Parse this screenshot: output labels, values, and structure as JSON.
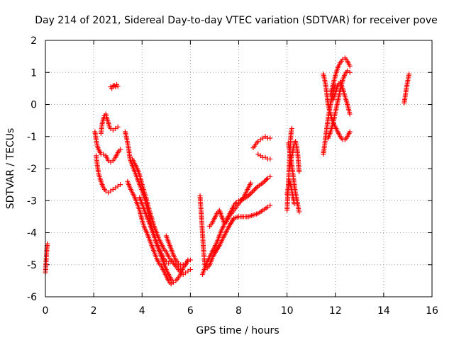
{
  "chart_data": {
    "type": "scatter",
    "title": "Day 214 of 2021, Sidereal Day-to-day VTEC variation (SDTVAR) for receiver pove",
    "xlabel": "GPS time / hours",
    "ylabel": "SDTVAR / TECUs",
    "xlim": [
      0,
      16
    ],
    "ylim": [
      -6,
      2
    ],
    "xticks": [
      0,
      2,
      4,
      6,
      8,
      10,
      12,
      14,
      16
    ],
    "yticks": [
      -6,
      -5,
      -4,
      -3,
      -2,
      -1,
      0,
      1,
      2
    ],
    "grid": true,
    "marker": "+",
    "color": "#ff0000",
    "segments": [
      {
        "x": [
          0.0,
          0.02,
          0.04,
          0.06,
          0.08
        ],
        "y": [
          -5.25,
          -5.0,
          -4.75,
          -4.5,
          -4.35
        ]
      },
      {
        "x": [
          2.05,
          2.1,
          2.15,
          2.2,
          2.3,
          2.4,
          2.5,
          2.6,
          2.7,
          2.8,
          2.9,
          3.0,
          3.1
        ],
        "y": [
          -0.85,
          -1.1,
          -1.3,
          -1.4,
          -1.55,
          -1.55,
          -1.6,
          -1.75,
          -1.8,
          -1.75,
          -1.65,
          -1.5,
          -1.4
        ]
      },
      {
        "x": [
          2.1,
          2.15,
          2.2,
          2.3,
          2.4,
          2.5,
          2.6,
          2.7,
          2.8,
          2.9,
          3.0,
          3.1
        ],
        "y": [
          -1.6,
          -1.9,
          -2.15,
          -2.4,
          -2.6,
          -2.7,
          -2.75,
          -2.7,
          -2.65,
          -2.6,
          -2.55,
          -2.5
        ]
      },
      {
        "x": [
          2.3,
          2.35,
          2.4,
          2.45,
          2.5,
          2.55,
          2.6,
          2.65,
          2.7,
          2.8,
          2.9,
          3.0
        ],
        "y": [
          -0.9,
          -0.6,
          -0.45,
          -0.35,
          -0.3,
          -0.45,
          -0.55,
          -0.7,
          -0.75,
          -0.8,
          -0.75,
          -0.7
        ]
      },
      {
        "x": [
          2.7,
          2.75,
          2.8,
          2.85,
          2.9,
          2.95,
          3.0
        ],
        "y": [
          0.55,
          0.5,
          0.58,
          0.6,
          0.55,
          0.62,
          0.57
        ]
      },
      {
        "x": [
          3.3,
          3.35,
          3.4,
          3.45,
          3.5,
          3.6,
          3.7,
          3.8,
          3.9,
          4.0,
          4.1,
          4.2,
          4.3,
          4.4,
          4.5,
          4.6,
          4.7,
          4.8,
          4.9,
          5.0,
          5.1,
          5.2,
          5.3,
          5.4,
          5.5,
          5.6,
          5.7,
          5.8,
          5.9
        ],
        "y": [
          -0.85,
          -1.0,
          -1.2,
          -1.4,
          -1.7,
          -1.9,
          -2.1,
          -2.3,
          -2.5,
          -2.7,
          -2.9,
          -3.2,
          -3.5,
          -3.8,
          -4.1,
          -4.35,
          -4.55,
          -4.75,
          -4.95,
          -5.15,
          -5.3,
          -5.45,
          -5.55,
          -5.5,
          -5.4,
          -5.3,
          -5.1,
          -5.0,
          -4.85
        ]
      },
      {
        "x": [
          3.4,
          3.5,
          3.6,
          3.7,
          3.8,
          3.9,
          4.0,
          4.1,
          4.2,
          4.3,
          4.4,
          4.5,
          4.6,
          4.7,
          4.8,
          4.9,
          5.0,
          5.1,
          5.2
        ],
        "y": [
          -2.4,
          -2.6,
          -2.75,
          -2.9,
          -3.1,
          -3.3,
          -3.6,
          -3.85,
          -4.0,
          -4.2,
          -4.4,
          -4.6,
          -4.8,
          -4.95,
          -5.05,
          -5.2,
          -5.35,
          -5.5,
          -5.6
        ]
      },
      {
        "x": [
          3.6,
          3.7,
          3.8,
          3.9,
          4.0,
          4.1,
          4.2,
          4.3,
          4.4,
          4.5,
          4.6,
          4.7,
          4.8,
          4.9,
          5.0,
          5.1,
          5.2,
          5.3,
          5.4,
          5.5,
          5.6,
          5.7,
          5.8,
          5.9,
          6.0
        ],
        "y": [
          -1.7,
          -1.85,
          -2.0,
          -2.2,
          -2.5,
          -2.75,
          -3.0,
          -3.3,
          -3.55,
          -3.8,
          -4.0,
          -4.2,
          -4.35,
          -4.5,
          -4.6,
          -4.75,
          -4.85,
          -4.95,
          -5.05,
          -5.15,
          -5.25,
          -5.3,
          -5.25,
          -5.2,
          -5.15
        ]
      },
      {
        "x": [
          3.9,
          4.0,
          4.1,
          4.2,
          4.3,
          4.4,
          4.5,
          4.6,
          4.7,
          4.8,
          4.9,
          5.0,
          5.1,
          5.2,
          5.3,
          5.4,
          5.5,
          5.6
        ],
        "y": [
          -2.9,
          -3.1,
          -3.3,
          -3.5,
          -3.7,
          -3.9,
          -4.1,
          -4.3,
          -4.5,
          -4.65,
          -4.8,
          -4.9,
          -4.95,
          -4.9,
          -4.95,
          -5.0,
          -5.05,
          -5.1
        ]
      },
      {
        "x": [
          5.0,
          5.1,
          5.2,
          5.3,
          5.4,
          5.5,
          5.6,
          5.7,
          5.8,
          5.9,
          6.0
        ],
        "y": [
          -4.1,
          -4.3,
          -4.5,
          -4.7,
          -4.85,
          -4.95,
          -5.0,
          -5.0,
          -4.95,
          -4.9,
          -4.85
        ]
      },
      {
        "x": [
          6.4,
          6.45,
          6.5,
          6.55,
          6.6,
          6.7,
          6.8,
          6.9,
          7.0,
          7.2,
          7.4,
          7.6,
          7.8,
          8.0,
          8.2,
          8.4,
          8.6,
          8.8,
          9.0,
          9.2,
          9.3
        ],
        "y": [
          -2.85,
          -3.4,
          -4.0,
          -4.6,
          -5.0,
          -5.1,
          -5.0,
          -4.8,
          -4.65,
          -4.4,
          -4.1,
          -3.8,
          -3.55,
          -3.5,
          -3.5,
          -3.5,
          -3.45,
          -3.4,
          -3.3,
          -3.2,
          -3.15
        ]
      },
      {
        "x": [
          6.5,
          6.6,
          6.7,
          6.8,
          6.9,
          7.0,
          7.1,
          7.2,
          7.3,
          7.4,
          7.5,
          7.6,
          7.7,
          7.8,
          7.9,
          8.0,
          8.2,
          8.4,
          8.6,
          8.8,
          9.0,
          9.2,
          9.3
        ],
        "y": [
          -5.3,
          -5.1,
          -4.9,
          -4.75,
          -4.6,
          -4.45,
          -4.3,
          -4.1,
          -3.9,
          -3.75,
          -3.6,
          -3.45,
          -3.3,
          -3.15,
          -3.05,
          -3.0,
          -2.95,
          -2.85,
          -2.7,
          -2.55,
          -2.45,
          -2.3,
          -2.25
        ]
      },
      {
        "x": [
          6.8,
          6.9,
          7.0,
          7.1,
          7.2,
          7.3,
          7.4,
          7.5,
          7.6,
          7.7,
          7.8,
          7.9,
          8.0,
          8.1,
          8.2,
          8.3,
          8.4,
          8.5
        ],
        "y": [
          -3.8,
          -3.7,
          -3.55,
          -3.4,
          -3.3,
          -3.5,
          -3.7,
          -3.65,
          -3.5,
          -3.4,
          -3.3,
          -3.2,
          -3.1,
          -3.0,
          -2.9,
          -2.75,
          -2.6,
          -2.45
        ]
      },
      {
        "x": [
          8.6,
          8.7,
          8.8,
          8.9,
          9.0,
          9.1,
          9.2,
          9.3
        ],
        "y": [
          -1.35,
          -1.25,
          -1.15,
          -1.1,
          -1.05,
          -1.0,
          -1.05,
          -1.05
        ]
      },
      {
        "x": [
          8.8,
          8.9,
          9.0,
          9.1,
          9.2,
          9.3
        ],
        "y": [
          -1.55,
          -1.6,
          -1.65,
          -1.65,
          -1.7,
          -1.7
        ]
      },
      {
        "x": [
          10.0,
          10.02,
          10.04,
          10.06,
          10.08,
          10.1,
          10.12,
          10.14,
          10.16,
          10.18,
          10.2
        ],
        "y": [
          -3.3,
          -3.0,
          -2.7,
          -2.4,
          -2.1,
          -1.8,
          -1.5,
          -1.2,
          -0.95,
          -0.8,
          -0.75
        ]
      },
      {
        "x": [
          10.05,
          10.1,
          10.15,
          10.2,
          10.25,
          10.3,
          10.35,
          10.4,
          10.45,
          10.5
        ],
        "y": [
          -1.2,
          -1.4,
          -1.65,
          -1.9,
          -2.2,
          -2.5,
          -2.75,
          -2.95,
          -3.15,
          -3.35
        ]
      },
      {
        "x": [
          10.1,
          10.15,
          10.2,
          10.25,
          10.3,
          10.35,
          10.4,
          10.45,
          10.5
        ],
        "y": [
          -2.0,
          -1.8,
          -1.6,
          -1.4,
          -1.2,
          -1.15,
          -1.3,
          -1.6,
          -2.1
        ]
      },
      {
        "x": [
          10.0,
          10.05,
          10.1,
          10.15,
          10.2,
          10.25,
          10.3
        ],
        "y": [
          -2.8,
          -2.6,
          -2.4,
          -2.5,
          -2.7,
          -2.9,
          -3.1
        ]
      },
      {
        "x": [
          11.5,
          11.55,
          11.6,
          11.65,
          11.7,
          11.75,
          11.8,
          11.85,
          11.9,
          11.95,
          12.0
        ],
        "y": [
          -1.55,
          -1.3,
          -1.0,
          -0.7,
          -0.45,
          -0.2,
          0.0,
          0.2,
          0.35,
          0.5,
          0.6
        ]
      },
      {
        "x": [
          11.5,
          11.55,
          11.6,
          11.65,
          11.7,
          11.8,
          11.9,
          12.0,
          12.1,
          12.2,
          12.3,
          12.4,
          12.5,
          12.6
        ],
        "y": [
          0.95,
          0.8,
          0.6,
          0.3,
          0.0,
          -0.3,
          -0.55,
          -0.7,
          -0.85,
          -1.0,
          -1.1,
          -1.1,
          -1.0,
          -0.85
        ]
      },
      {
        "x": [
          11.7,
          11.8,
          11.9,
          12.0,
          12.1,
          12.2,
          12.3,
          12.4,
          12.5,
          12.6
        ],
        "y": [
          -1.05,
          -0.85,
          -0.6,
          -0.25,
          0.1,
          0.45,
          0.75,
          0.95,
          1.05,
          1.0
        ]
      },
      {
        "x": [
          11.8,
          11.9,
          12.0,
          12.1,
          12.2,
          12.3,
          12.4,
          12.5,
          12.6
        ],
        "y": [
          0.3,
          0.6,
          0.9,
          1.15,
          1.3,
          1.4,
          1.45,
          1.35,
          1.2
        ]
      },
      {
        "x": [
          11.9,
          12.0,
          12.1,
          12.2,
          12.3,
          12.4,
          12.5,
          12.6
        ],
        "y": [
          0.15,
          0.35,
          0.6,
          0.7,
          0.5,
          0.25,
          0.0,
          -0.3
        ]
      },
      {
        "x": [
          14.85,
          14.9,
          14.95,
          15.0,
          15.05
        ],
        "y": [
          0.05,
          0.3,
          0.55,
          0.75,
          0.95
        ]
      }
    ]
  }
}
